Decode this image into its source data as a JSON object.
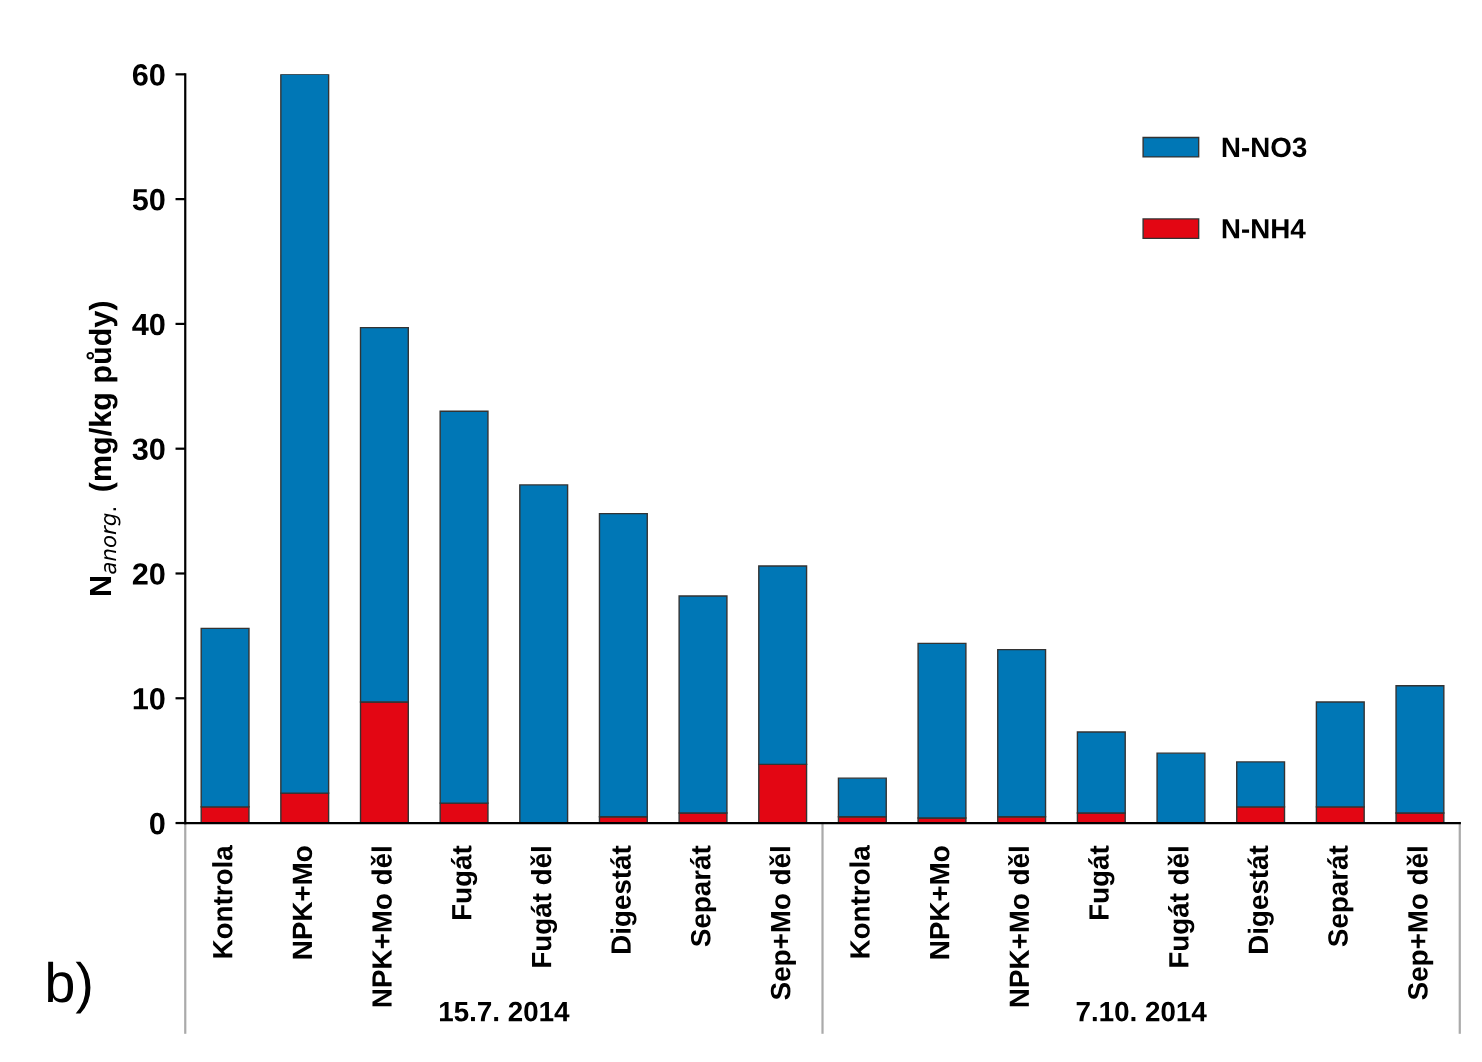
{
  "chart_data": {
    "type": "bar",
    "stacked": true,
    "ylabel": "N$_{anorg.}$ (mg/kg půdy)",
    "categories": [
      "Kontrola",
      "NPK+Mo",
      "NPK+Mo děl",
      "Fugát",
      "Fugát děl",
      "Digestát",
      "Separát",
      "Sep+Mo děl",
      "Kontrola",
      "NPK+Mo",
      "NPK+Mo děl",
      "Fugát",
      "Fugát děl",
      "Digestát",
      "Separát",
      "Sep+Mo děl"
    ],
    "series": [
      {
        "name": "N-NH4",
        "color": "#e30613",
        "values": [
          1.3,
          2.4,
          9.7,
          1.6,
          null,
          0.5,
          0.8,
          4.7,
          0.5,
          0.4,
          0.5,
          0.8,
          null,
          1.3,
          1.3,
          0.8
        ]
      },
      {
        "name": "N-NO3",
        "color": "#0077b6",
        "values": [
          14.3,
          57.6,
          30.0,
          31.4,
          27.1,
          24.3,
          17.4,
          15.9,
          3.1,
          14.0,
          13.4,
          6.5,
          5.6,
          3.6,
          8.4,
          10.2
        ]
      }
    ],
    "ylim": [
      0,
      60
    ],
    "yticks": [
      0,
      10,
      20,
      30,
      40,
      50,
      60
    ],
    "grid": false,
    "legend": "top right",
    "annotations": [
      "15.7. 2014",
      "7.10. 2014",
      "b)"
    ]
  }
}
